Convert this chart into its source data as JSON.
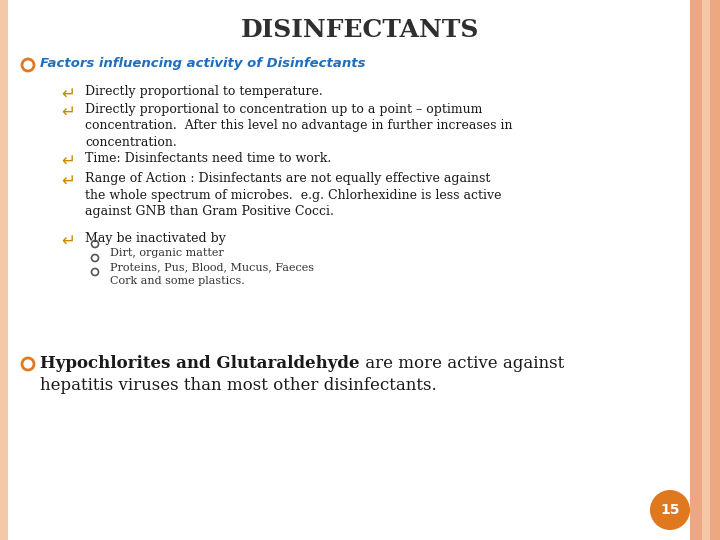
{
  "title": "DISINFECTANTS",
  "title_color": "#2F2F2F",
  "title_fontsize": 18,
  "bg_color": "#FFFFFF",
  "right_border_color1": "#F5C8A8",
  "right_border_color2": "#EDA882",
  "bullet1_color": "#1E6FBF",
  "bullet1_text": "Factors influencing activity of Disinfectants",
  "bullet1_fontsize": 9.5,
  "sub_bullet_color": "#CC8800",
  "sub_bullet_sym": "↵",
  "sub_bullets": [
    "Directly proportional to temperature.",
    "Directly proportional to concentration up to a point – optimum\nconcentration.  After this level no advantage in further increases in\nconcentration.",
    "Time: Disinfectants need time to work.",
    "Range of Action : Disinfectants are not equally effective against\nthe whole spectrum of microbes.  e.g. Chlorhexidine is less active\nagainst GNB than Gram Positive Cocci.",
    "May be inactivated by"
  ],
  "sub_bullet_fontsize": 9.0,
  "sub_sub_bullets": [
    "Dirt, organic matter",
    "Proteins, Pus, Blood, Mucus, Faeces",
    "Cork and some plastics."
  ],
  "sub_sub_fontsize": 8.0,
  "bullet2_bold": "Hypochlorites and Glutaraldehyde",
  "bullet2_rest": " are more active against\nhepatitis viruses than most other disinfectants.",
  "bullet2_fontsize": 12,
  "page_num": "15",
  "page_circle_color": "#E07820",
  "text_color": "#1A1A1A",
  "orange_bullet_color": "#E07820"
}
